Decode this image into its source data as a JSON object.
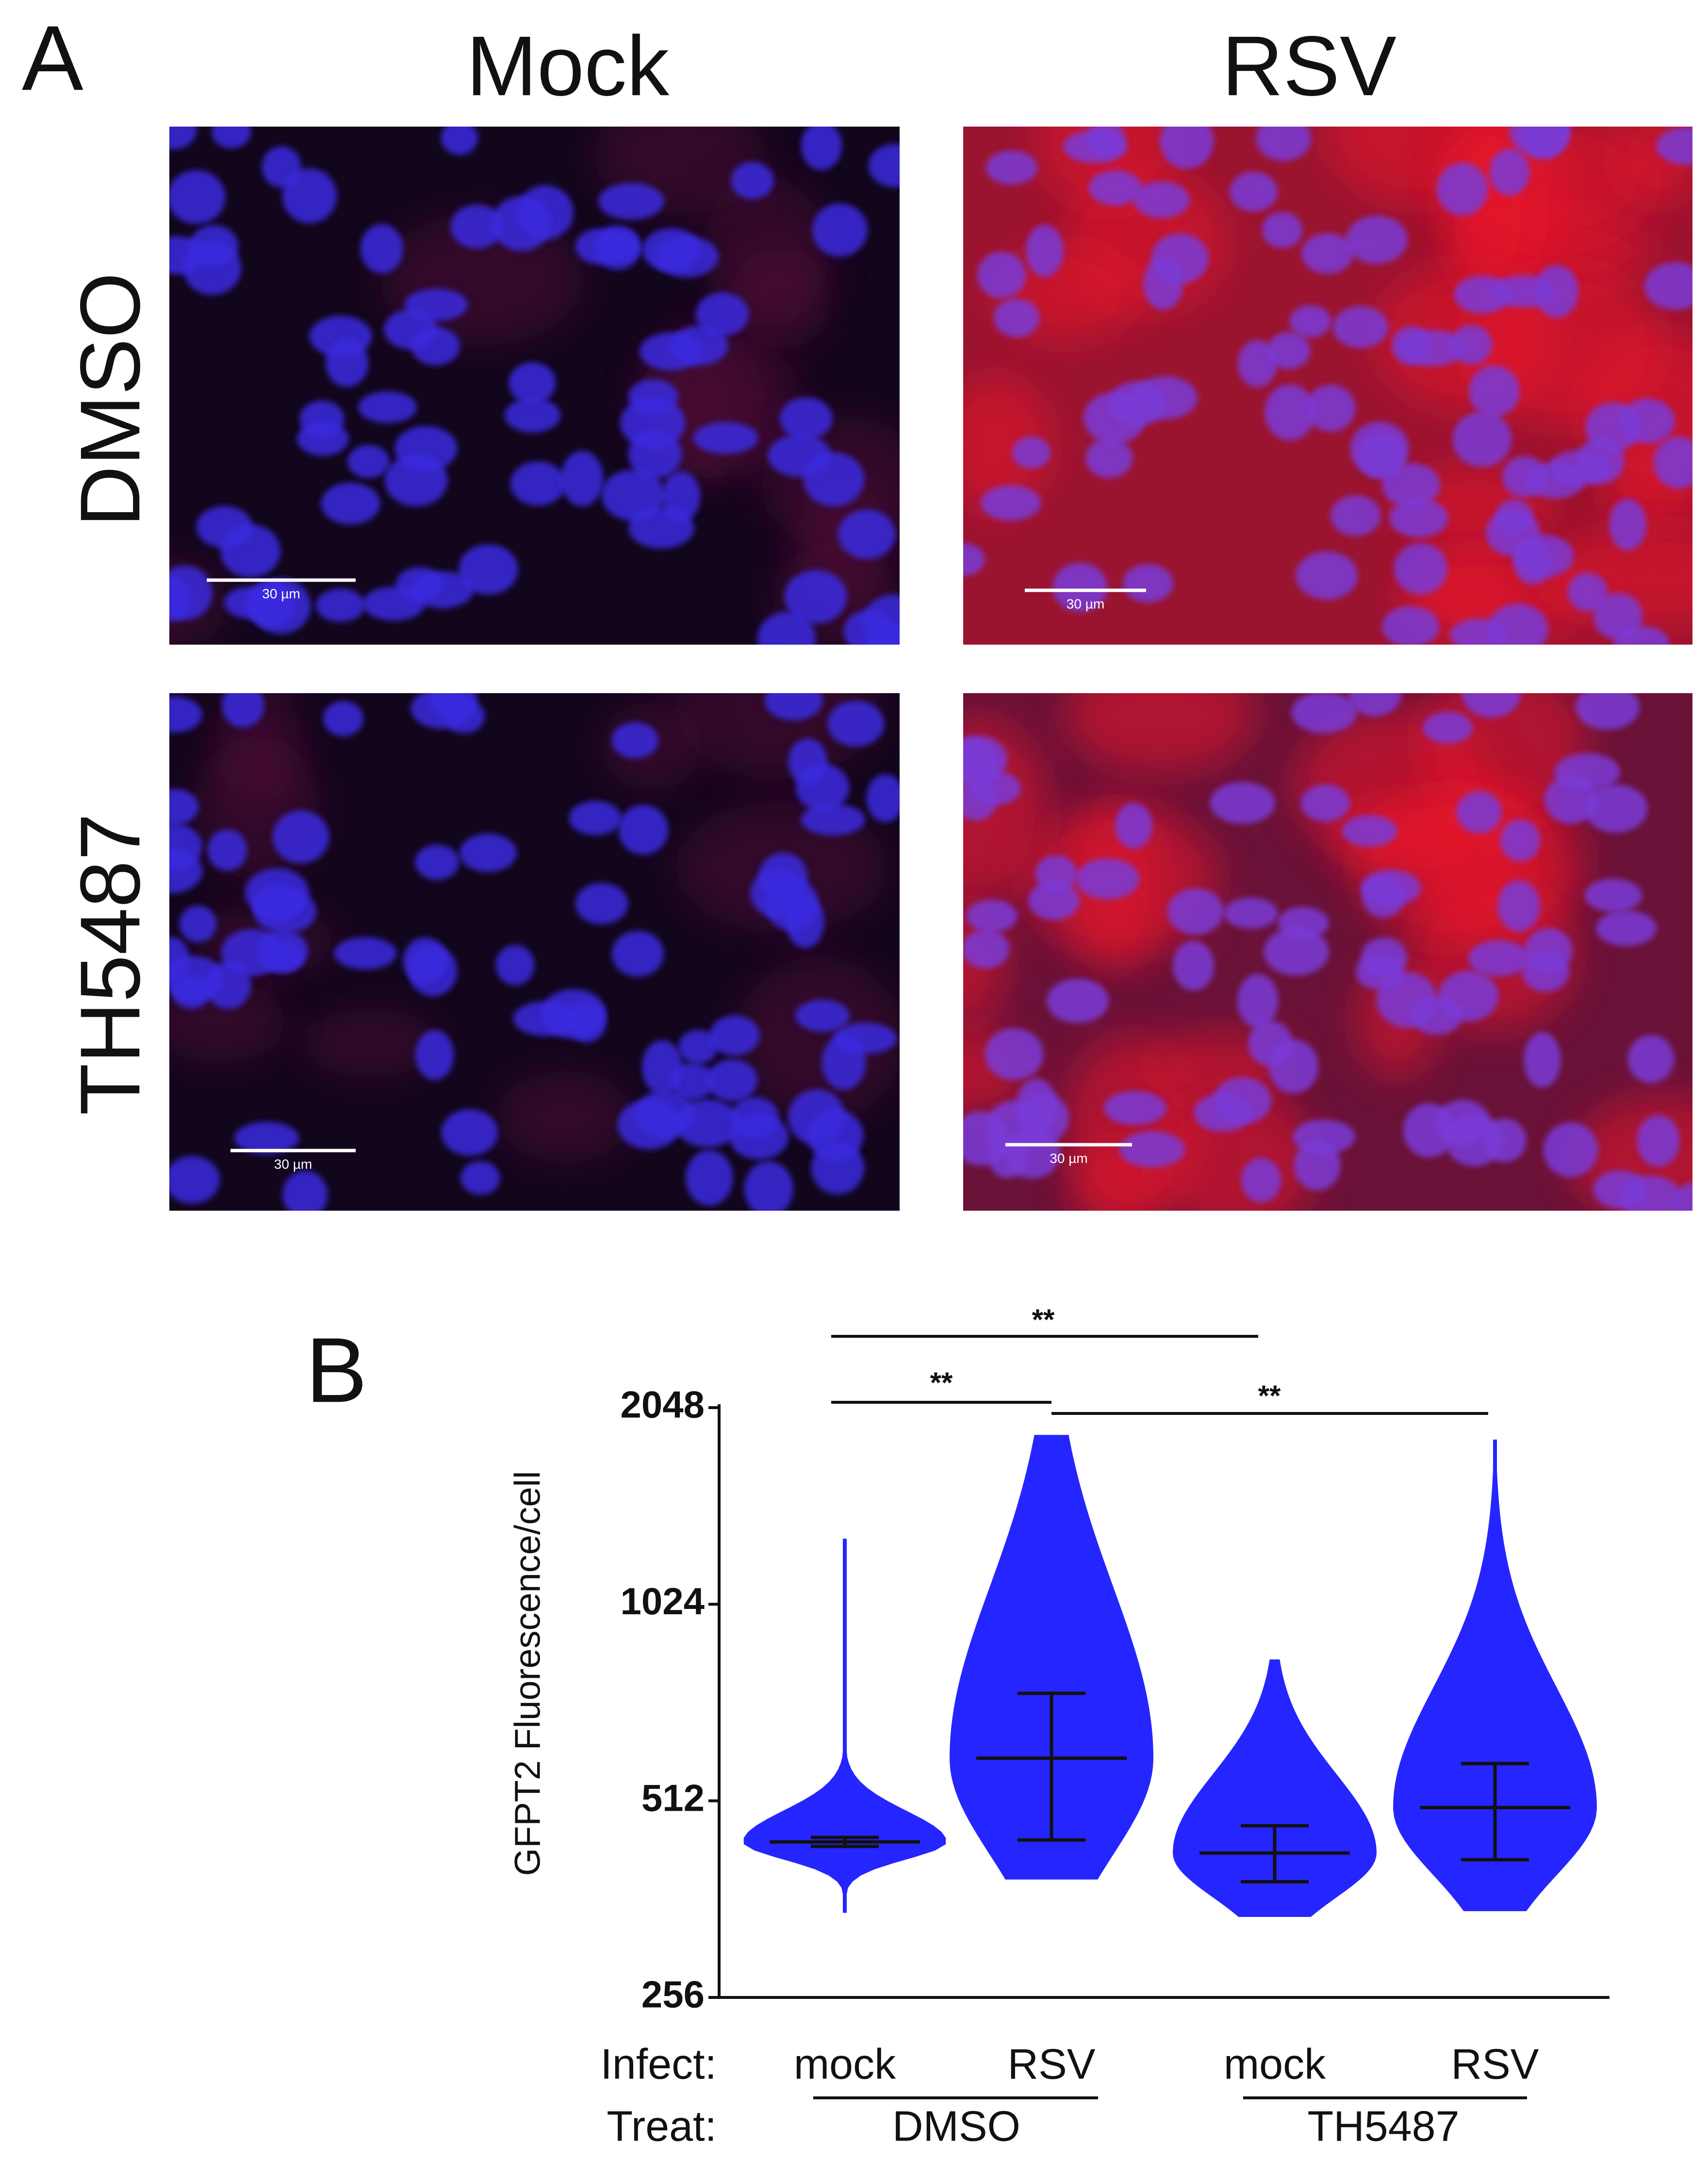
{
  "panel_a": {
    "label": "A",
    "columns": [
      "Mock",
      "RSV"
    ],
    "rows": [
      "DMSO",
      "TH5487"
    ],
    "scale_bars": [
      "30 µm",
      "30 µm",
      "30 µm",
      "30 µm"
    ]
  },
  "chart_data": {
    "type": "swarm",
    "panel_label": "B",
    "y_label": "GFPT2 Fluorescence/cell",
    "categories": [
      "mock",
      "RSV",
      "mock",
      "RSV"
    ],
    "row_labels": [
      "Infect:",
      "Treat:"
    ],
    "groups": [
      "DMSO",
      "TH5487"
    ],
    "yscale": "log",
    "ylim": [
      256,
      2048
    ],
    "yticks": [
      256,
      512,
      1024,
      2048
    ],
    "color": "#1212ff",
    "median": [
      443,
      595,
      426,
      500
    ],
    "upper": [
      450,
      748,
      469,
      584
    ],
    "lower": [
      436,
      446,
      385,
      416
    ],
    "max": [
      1290,
      1860,
      843,
      1830
    ],
    "min": [
      345,
      388,
      340,
      347
    ],
    "significance": [
      "**",
      "**",
      "**"
    ]
  }
}
